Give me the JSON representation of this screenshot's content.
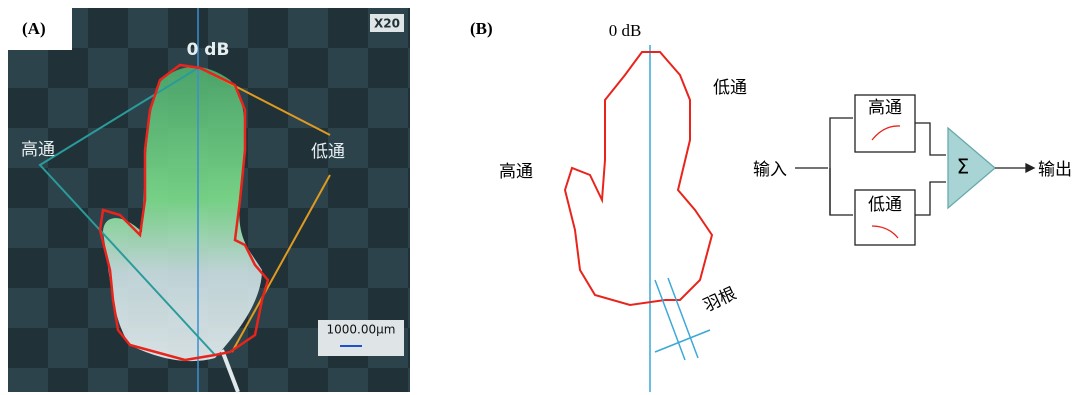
{
  "panel_a": {
    "label": "(A)",
    "magnification": "X20",
    "reference": "0 dB",
    "left_label": "高通",
    "right_label": "低通",
    "scale_bar": "1000.00μm"
  },
  "panel_b": {
    "label": "(B)",
    "reference": "0 dB",
    "low_pass": "低通",
    "high_pass": "高通",
    "root": "羽根"
  },
  "block_diagram": {
    "input": "输入",
    "high_pass": "高通",
    "low_pass": "低通",
    "sum": "Σ",
    "output": "输出"
  }
}
